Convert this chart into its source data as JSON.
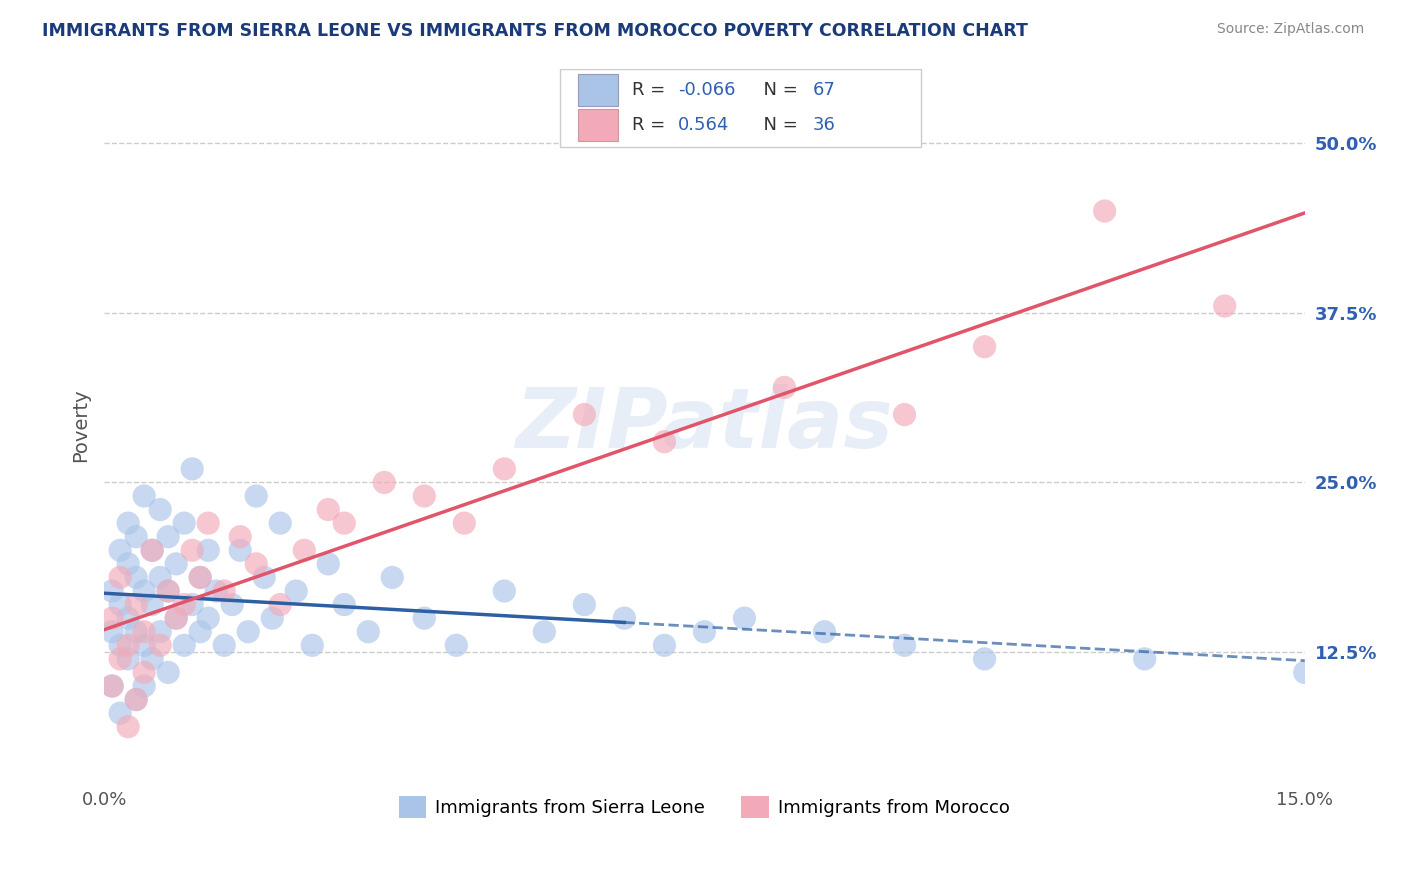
{
  "title": "IMMIGRANTS FROM SIERRA LEONE VS IMMIGRANTS FROM MOROCCO POVERTY CORRELATION CHART",
  "source": "Source: ZipAtlas.com",
  "ylabel": "Poverty",
  "xlim": [
    0.0,
    0.15
  ],
  "ylim": [
    0.03,
    0.555
  ],
  "ytick_positions": [
    0.125,
    0.25,
    0.375,
    0.5
  ],
  "ytick_labels": [
    "12.5%",
    "25.0%",
    "37.5%",
    "50.0%"
  ],
  "series1_name": "Immigrants from Sierra Leone",
  "series1_color": "#aac4e8",
  "series1_line_color": "#2e5fa3",
  "series1_R": -0.066,
  "series1_N": 67,
  "series2_name": "Immigrants from Morocco",
  "series2_color": "#f2aab8",
  "series2_line_color": "#e0556a",
  "series2_R": 0.564,
  "series2_N": 36,
  "watermark": "ZIPatlas",
  "background_color": "#ffffff",
  "grid_color": "#cccccc",
  "title_color": "#1a3a7a",
  "legend_R_color": "#3060b0",
  "sierra_leone_x": [
    0.001,
    0.001,
    0.001,
    0.002,
    0.002,
    0.002,
    0.002,
    0.003,
    0.003,
    0.003,
    0.003,
    0.004,
    0.004,
    0.004,
    0.004,
    0.005,
    0.005,
    0.005,
    0.005,
    0.006,
    0.006,
    0.006,
    0.007,
    0.007,
    0.007,
    0.008,
    0.008,
    0.008,
    0.009,
    0.009,
    0.01,
    0.01,
    0.011,
    0.011,
    0.012,
    0.012,
    0.013,
    0.013,
    0.014,
    0.015,
    0.016,
    0.017,
    0.018,
    0.019,
    0.02,
    0.021,
    0.022,
    0.024,
    0.026,
    0.028,
    0.03,
    0.033,
    0.036,
    0.04,
    0.044,
    0.05,
    0.055,
    0.06,
    0.065,
    0.07,
    0.075,
    0.08,
    0.09,
    0.1,
    0.11,
    0.13,
    0.15
  ],
  "sierra_leone_y": [
    0.17,
    0.14,
    0.1,
    0.16,
    0.13,
    0.2,
    0.08,
    0.19,
    0.15,
    0.12,
    0.22,
    0.18,
    0.14,
    0.09,
    0.21,
    0.17,
    0.13,
    0.24,
    0.1,
    0.16,
    0.2,
    0.12,
    0.18,
    0.14,
    0.23,
    0.17,
    0.11,
    0.21,
    0.15,
    0.19,
    0.13,
    0.22,
    0.16,
    0.26,
    0.18,
    0.14,
    0.2,
    0.15,
    0.17,
    0.13,
    0.16,
    0.2,
    0.14,
    0.24,
    0.18,
    0.15,
    0.22,
    0.17,
    0.13,
    0.19,
    0.16,
    0.14,
    0.18,
    0.15,
    0.13,
    0.17,
    0.14,
    0.16,
    0.15,
    0.13,
    0.14,
    0.15,
    0.14,
    0.13,
    0.12,
    0.12,
    0.11
  ],
  "morocco_x": [
    0.001,
    0.001,
    0.002,
    0.002,
    0.003,
    0.003,
    0.004,
    0.004,
    0.005,
    0.005,
    0.006,
    0.007,
    0.008,
    0.009,
    0.01,
    0.011,
    0.012,
    0.013,
    0.015,
    0.017,
    0.019,
    0.022,
    0.025,
    0.028,
    0.03,
    0.035,
    0.04,
    0.045,
    0.05,
    0.06,
    0.07,
    0.085,
    0.1,
    0.11,
    0.125,
    0.14
  ],
  "morocco_y": [
    0.15,
    0.1,
    0.18,
    0.12,
    0.13,
    0.07,
    0.16,
    0.09,
    0.14,
    0.11,
    0.2,
    0.13,
    0.17,
    0.15,
    0.16,
    0.2,
    0.18,
    0.22,
    0.17,
    0.21,
    0.19,
    0.16,
    0.2,
    0.23,
    0.22,
    0.25,
    0.24,
    0.22,
    0.26,
    0.3,
    0.28,
    0.32,
    0.3,
    0.35,
    0.45,
    0.38
  ]
}
